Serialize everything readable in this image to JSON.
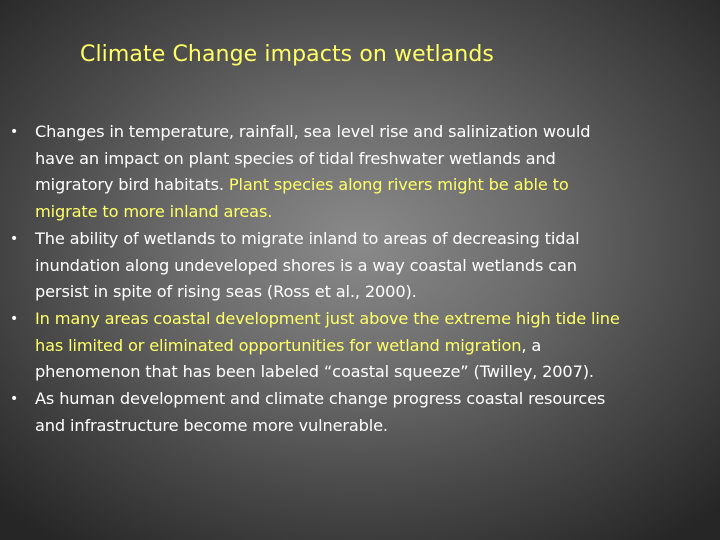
{
  "slide": {
    "title": "Climate Change impacts on wetlands",
    "bullet_symbol": "•",
    "bullets": [
      {
        "lines": [
          [
            {
              "text": "Changes in temperature, rainfall, sea level rise and salinization  would",
              "color": "white"
            }
          ],
          [
            {
              "text": "have an impact on plant species of tidal freshwater wetlands and",
              "color": "white"
            }
          ],
          [
            {
              "text": "migratory bird habitats.  ",
              "color": "white"
            },
            {
              "text": "Plant species along rivers might be able to",
              "color": "yellow"
            }
          ],
          [
            {
              "text": "migrate to more inland areas.",
              "color": "yellow"
            }
          ]
        ]
      },
      {
        "lines": [
          [
            {
              "text": "The ability of wetlands to migrate inland to areas of decreasing tidal",
              "color": "white"
            }
          ],
          [
            {
              "text": "inundation along undeveloped shores is a way coastal wetlands can",
              "color": "white"
            }
          ],
          [
            {
              "text": "persist  in spite of rising seas (Ross et al., 2000).",
              "color": "white"
            }
          ]
        ]
      },
      {
        "lines": [
          [
            {
              "text": "In many areas coastal development just above the extreme high tide line",
              "color": "yellow"
            }
          ],
          [
            {
              "text": "has limited or eliminated opportunities for wetland migration",
              "color": "yellow"
            },
            {
              "text": ", a",
              "color": "white"
            }
          ],
          [
            {
              "text": "phenomenon that has been labeled “coastal squeeze” (Twilley, 2007).",
              "color": "white"
            }
          ]
        ]
      },
      {
        "lines": [
          [
            {
              "text": "As human development and climate change progress coastal resources",
              "color": "white"
            }
          ],
          [
            {
              "text": "and infrastructure become more vulnerable.",
              "color": "white"
            }
          ]
        ]
      }
    ]
  }
}
